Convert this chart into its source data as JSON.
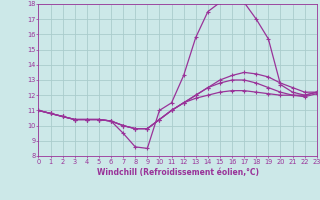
{
  "xlabel": "Windchill (Refroidissement éolien,°C)",
  "xlim": [
    0,
    23
  ],
  "ylim": [
    8,
    18
  ],
  "xticks": [
    0,
    1,
    2,
    3,
    4,
    5,
    6,
    7,
    8,
    9,
    10,
    11,
    12,
    13,
    14,
    15,
    16,
    17,
    18,
    19,
    20,
    21,
    22,
    23
  ],
  "yticks": [
    8,
    9,
    10,
    11,
    12,
    13,
    14,
    15,
    16,
    17,
    18
  ],
  "bg_color": "#cce8e8",
  "grid_color": "#aacccc",
  "line_color": "#993399",
  "lw": 0.9,
  "ms": 2.5,
  "series": [
    [
      11.0,
      10.8,
      10.6,
      10.4,
      10.4,
      10.4,
      10.3,
      9.5,
      8.6,
      8.5,
      11.0,
      11.5,
      13.3,
      15.8,
      17.5,
      18.1,
      18.2,
      18.1,
      17.0,
      15.7,
      12.7,
      12.2,
      12.0,
      12.2
    ],
    [
      11.0,
      10.8,
      10.6,
      10.4,
      10.4,
      10.4,
      10.3,
      10.0,
      9.8,
      9.8,
      10.4,
      11.0,
      11.5,
      11.8,
      12.0,
      12.2,
      12.3,
      12.3,
      12.2,
      12.1,
      12.0,
      12.0,
      12.0,
      12.2
    ],
    [
      11.0,
      10.8,
      10.6,
      10.4,
      10.4,
      10.4,
      10.3,
      10.0,
      9.8,
      9.8,
      10.4,
      11.0,
      11.5,
      12.0,
      12.5,
      13.0,
      13.3,
      13.5,
      13.4,
      13.2,
      12.8,
      12.5,
      12.2,
      12.2
    ],
    [
      11.0,
      10.8,
      10.6,
      10.4,
      10.4,
      10.4,
      10.3,
      10.0,
      9.8,
      9.8,
      10.4,
      11.0,
      11.5,
      12.0,
      12.5,
      12.8,
      13.0,
      13.0,
      12.8,
      12.5,
      12.2,
      12.0,
      11.9,
      12.1
    ]
  ]
}
